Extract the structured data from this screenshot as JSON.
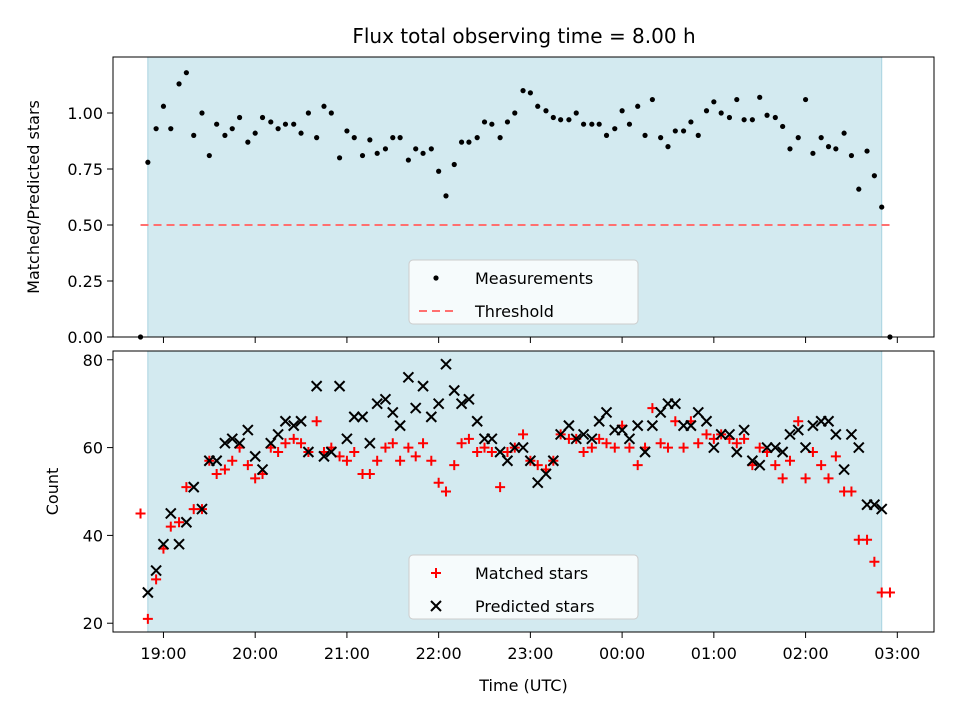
{
  "figure": {
    "title": "Flux total observing time = 8.00 h"
  },
  "chart_data": [
    {
      "type": "scatter",
      "panel": "top",
      "title": "Flux total observing time = 8.00 h",
      "ylabel": "Matched/Predicted stars",
      "xlabel": "",
      "ylim": [
        0,
        1.25
      ],
      "yticks": [
        0.0,
        0.25,
        0.5,
        0.75,
        1.0
      ],
      "ytick_labels": [
        "0.00",
        "0.25",
        "0.50",
        "0.75",
        "1.00"
      ],
      "xlim": [
        18.45,
        27.4
      ],
      "observing_window": [
        18.83,
        26.83
      ],
      "legend_position": "lower-center",
      "series": [
        {
          "name": "Measurements",
          "marker": "dot",
          "color": "#000000",
          "x": [
            18.75,
            18.83,
            18.92,
            19.0,
            19.08,
            19.17,
            19.25,
            19.33,
            19.42,
            19.5,
            19.58,
            19.67,
            19.75,
            19.83,
            19.92,
            20.0,
            20.08,
            20.17,
            20.25,
            20.33,
            20.42,
            20.5,
            20.58,
            20.67,
            20.75,
            20.83,
            20.92,
            21.0,
            21.08,
            21.17,
            21.25,
            21.33,
            21.42,
            21.5,
            21.58,
            21.67,
            21.75,
            21.83,
            21.92,
            22.0,
            22.08,
            22.17,
            22.25,
            22.33,
            22.42,
            22.5,
            22.58,
            22.67,
            22.75,
            22.83,
            22.92,
            23.0,
            23.08,
            23.17,
            23.25,
            23.33,
            23.42,
            23.5,
            23.58,
            23.67,
            23.75,
            23.83,
            23.92,
            24.0,
            24.08,
            24.17,
            24.25,
            24.33,
            24.42,
            24.5,
            24.58,
            24.67,
            24.75,
            24.83,
            24.92,
            25.0,
            25.08,
            25.17,
            25.25,
            25.33,
            25.42,
            25.5,
            25.58,
            25.67,
            25.75,
            25.83,
            25.92,
            26.0,
            26.08,
            26.17,
            26.25,
            26.33,
            26.42,
            26.5,
            26.58,
            26.67,
            26.75,
            26.83,
            26.92
          ],
          "y": [
            0.0,
            0.78,
            0.93,
            1.03,
            0.93,
            1.13,
            1.18,
            0.9,
            1.0,
            0.81,
            0.95,
            0.9,
            0.93,
            0.98,
            0.87,
            0.91,
            0.98,
            0.96,
            0.93,
            0.95,
            0.95,
            0.91,
            1.0,
            0.89,
            1.03,
            1.0,
            0.8,
            0.92,
            0.89,
            0.81,
            0.88,
            0.82,
            0.84,
            0.89,
            0.89,
            0.79,
            0.84,
            0.82,
            0.84,
            0.74,
            0.63,
            0.77,
            0.87,
            0.87,
            0.89,
            0.96,
            0.95,
            0.89,
            0.96,
            1.0,
            1.1,
            1.09,
            1.03,
            1.01,
            0.98,
            0.97,
            0.97,
            1.0,
            0.95,
            0.95,
            0.95,
            0.9,
            0.93,
            1.01,
            0.95,
            1.03,
            0.9,
            1.06,
            0.89,
            0.85,
            0.92,
            0.92,
            0.96,
            0.9,
            1.01,
            1.05,
            1.0,
            0.98,
            1.06,
            0.97,
            0.97,
            1.07,
            0.99,
            0.98,
            0.94,
            0.84,
            0.89,
            1.06,
            0.82,
            0.89,
            0.85,
            0.84,
            0.91,
            0.81,
            0.66,
            0.83,
            0.72,
            0.58,
            0.0
          ]
        },
        {
          "name": "Threshold",
          "marker": "dashed-line",
          "color": "#ff7070",
          "x": [
            18.75,
            26.92
          ],
          "y": [
            0.5,
            0.5
          ]
        }
      ]
    },
    {
      "type": "scatter",
      "panel": "bottom",
      "xlabel": "Time (UTC)",
      "ylabel": "Count",
      "ylim": [
        18,
        82
      ],
      "yticks": [
        20,
        40,
        60,
        80
      ],
      "ytick_labels": [
        "20",
        "40",
        "60",
        "80"
      ],
      "xlim": [
        18.45,
        27.4
      ],
      "xticks": [
        19,
        20,
        21,
        22,
        23,
        24,
        25,
        26,
        27
      ],
      "xtick_labels": [
        "19:00",
        "20:00",
        "21:00",
        "22:00",
        "23:00",
        "00:00",
        "01:00",
        "02:00",
        "03:00"
      ],
      "observing_window": [
        18.83,
        26.83
      ],
      "legend_position": "lower-center",
      "series": [
        {
          "name": "Matched stars",
          "marker": "plus",
          "color": "#ff0000",
          "x": [
            18.75,
            18.83,
            18.92,
            19.0,
            19.08,
            19.17,
            19.25,
            19.33,
            19.42,
            19.5,
            19.58,
            19.67,
            19.75,
            19.83,
            19.92,
            20.0,
            20.08,
            20.17,
            20.25,
            20.33,
            20.42,
            20.5,
            20.58,
            20.67,
            20.75,
            20.83,
            20.92,
            21.0,
            21.08,
            21.17,
            21.25,
            21.33,
            21.42,
            21.5,
            21.58,
            21.67,
            21.75,
            21.83,
            21.92,
            22.0,
            22.08,
            22.17,
            22.25,
            22.33,
            22.42,
            22.5,
            22.58,
            22.67,
            22.75,
            22.83,
            22.92,
            23.0,
            23.08,
            23.17,
            23.25,
            23.33,
            23.42,
            23.5,
            23.58,
            23.67,
            23.75,
            23.83,
            23.92,
            24.0,
            24.08,
            24.17,
            24.25,
            24.33,
            24.42,
            24.5,
            24.58,
            24.67,
            24.75,
            24.83,
            24.92,
            25.0,
            25.08,
            25.17,
            25.25,
            25.33,
            25.42,
            25.5,
            25.58,
            25.67,
            25.75,
            25.83,
            25.92,
            26.0,
            26.08,
            26.17,
            26.25,
            26.33,
            26.42,
            26.5,
            26.58,
            26.67,
            26.75,
            26.83,
            26.92
          ],
          "y": [
            45,
            21,
            30,
            37,
            42,
            43,
            51,
            46,
            46,
            57,
            54,
            55,
            57,
            60,
            56,
            53,
            54,
            60,
            59,
            61,
            62,
            61,
            59,
            66,
            59,
            60,
            58,
            57,
            59,
            54,
            54,
            57,
            60,
            61,
            57,
            60,
            58,
            61,
            57,
            52,
            50,
            56,
            61,
            62,
            59,
            60,
            59,
            51,
            59,
            60,
            63,
            57,
            56,
            55,
            57,
            63,
            62,
            62,
            59,
            60,
            62,
            61,
            60,
            65,
            60,
            56,
            60,
            69,
            61,
            60,
            66,
            60,
            66,
            61,
            63,
            62,
            63,
            62,
            61,
            62,
            56,
            60,
            59,
            56,
            53,
            57,
            66,
            53,
            59,
            56,
            53,
            58,
            50,
            50,
            39,
            39,
            34,
            27,
            27
          ]
        },
        {
          "name": "Predicted stars",
          "marker": "x",
          "color": "#000000",
          "x": [
            18.83,
            18.92,
            19.0,
            19.08,
            19.17,
            19.25,
            19.33,
            19.42,
            19.5,
            19.58,
            19.67,
            19.75,
            19.83,
            19.92,
            20.0,
            20.08,
            20.17,
            20.25,
            20.33,
            20.42,
            20.5,
            20.58,
            20.67,
            20.75,
            20.83,
            20.92,
            21.0,
            21.08,
            21.17,
            21.25,
            21.33,
            21.42,
            21.5,
            21.58,
            21.67,
            21.75,
            21.83,
            21.92,
            22.0,
            22.08,
            22.17,
            22.25,
            22.33,
            22.42,
            22.5,
            22.58,
            22.67,
            22.75,
            22.83,
            22.92,
            23.0,
            23.08,
            23.17,
            23.25,
            23.33,
            23.42,
            23.5,
            23.58,
            23.67,
            23.75,
            23.83,
            23.92,
            24.0,
            24.08,
            24.17,
            24.25,
            24.33,
            24.42,
            24.5,
            24.58,
            24.67,
            24.75,
            24.83,
            24.92,
            25.0,
            25.08,
            25.17,
            25.25,
            25.33,
            25.42,
            25.5,
            25.58,
            25.67,
            25.75,
            25.83,
            25.92,
            26.0,
            26.08,
            26.17,
            26.25,
            26.33,
            26.42,
            26.5,
            26.58,
            26.67,
            26.75,
            26.83
          ],
          "y": [
            27,
            32,
            38,
            45,
            38,
            43,
            51,
            46,
            57,
            57,
            61,
            62,
            61,
            64,
            58,
            55,
            61,
            63,
            66,
            65,
            66,
            59,
            74,
            58,
            59,
            74,
            62,
            67,
            67,
            61,
            70,
            71,
            68,
            65,
            76,
            69,
            74,
            67,
            70,
            79,
            73,
            70,
            71,
            66,
            62,
            62,
            59,
            57,
            60,
            60,
            57,
            52,
            54,
            57,
            63,
            65,
            62,
            63,
            62,
            66,
            68,
            64,
            64,
            62,
            65,
            59,
            65,
            68,
            70,
            70,
            65,
            65,
            68,
            66,
            60,
            63,
            63,
            59,
            64,
            57,
            56,
            60,
            60,
            59,
            63,
            64,
            60,
            65,
            66,
            66,
            63,
            55,
            63,
            60,
            47,
            47,
            46
          ]
        }
      ]
    }
  ]
}
